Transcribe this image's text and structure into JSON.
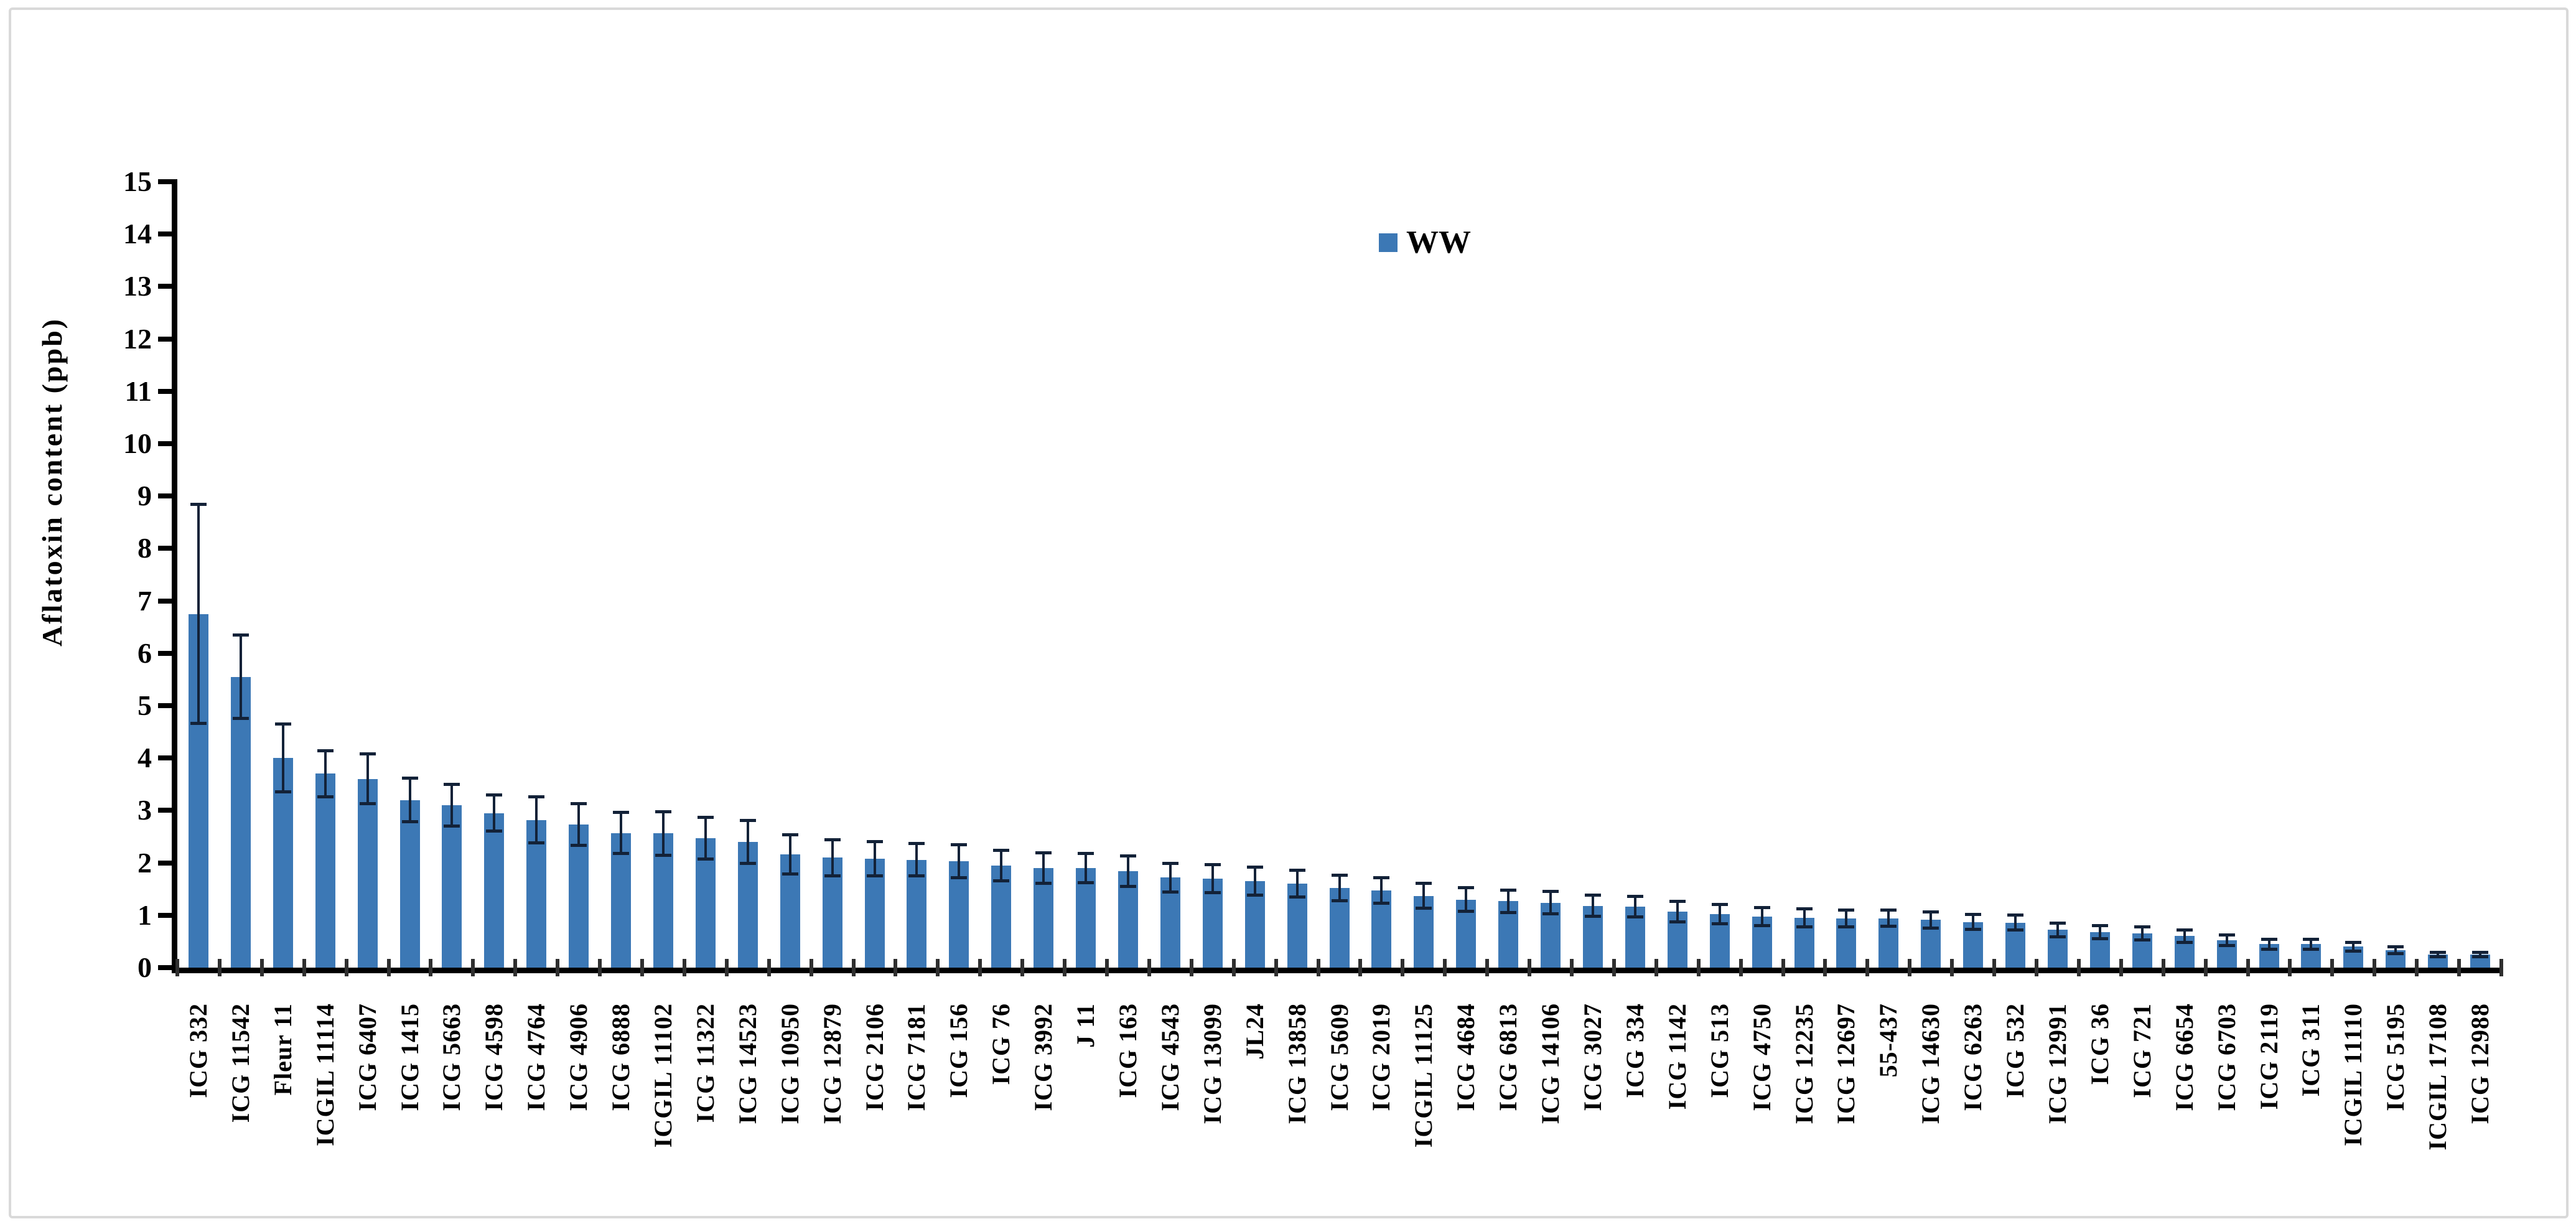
{
  "figure": {
    "background": "#ffffff",
    "frame_border_color": "#d9d9d9",
    "axis_color": "#000000",
    "tick_label_color": "#000000"
  },
  "chart_data": {
    "type": "bar",
    "title": "",
    "xlabel": "",
    "ylabel": "Aflatoxin content (ppb)",
    "ylim": [
      0,
      15
    ],
    "yticks": [
      0,
      1,
      2,
      3,
      4,
      5,
      6,
      7,
      8,
      9,
      10,
      11,
      12,
      13,
      14,
      15
    ],
    "grid": false,
    "legend": {
      "label": "WW",
      "position": "top-center",
      "swatch_color": "#3c78b5"
    },
    "bar_color": "#3c78b5",
    "error_bar_color": "#132238",
    "categories": [
      "ICG 332",
      "ICG 11542",
      "Fleur 11",
      "ICGIL 11114",
      "ICG 6407",
      "ICG 1415",
      "ICG 5663",
      "ICG 4598",
      "ICG 4764",
      "ICG 4906",
      "ICG 6888",
      "ICGIL 11102",
      "ICG 11322",
      "ICG 14523",
      "ICG 10950",
      "ICG 12879",
      "ICG 2106",
      "ICG 7181",
      "ICG 156",
      "ICG 76",
      "ICG 3992",
      "J 11",
      "ICG 163",
      "ICG 4543",
      "ICG 13099",
      "JL24",
      "ICG 13858",
      "ICG 5609",
      "ICG 2019",
      "ICGIL 11125",
      "ICG 4684",
      "ICG 6813",
      "ICG 14106",
      "ICG 3027",
      "ICG 334",
      "ICG 1142",
      "ICG 513",
      "ICG 4750",
      "ICG 12235",
      "ICG 12697",
      "55-437",
      "ICG 14630",
      "ICG 6263",
      "ICG 532",
      "ICG 12991",
      "ICG 36",
      "ICG 721",
      "ICG 6654",
      "ICG 6703",
      "ICG 2119",
      "ICG 311",
      "ICGIL 11110",
      "ICG 5195",
      "ICGIL 17108",
      "ICG 12988"
    ],
    "series": [
      {
        "name": "WW",
        "values": [
          6.75,
          5.55,
          4.0,
          3.7,
          3.6,
          3.2,
          3.1,
          2.95,
          2.82,
          2.73,
          2.57,
          2.56,
          2.47,
          2.4,
          2.16,
          2.1,
          2.08,
          2.06,
          2.03,
          1.95,
          1.9,
          1.9,
          1.84,
          1.72,
          1.7,
          1.65,
          1.6,
          1.52,
          1.47,
          1.37,
          1.3,
          1.27,
          1.24,
          1.18,
          1.16,
          1.07,
          1.02,
          0.97,
          0.95,
          0.94,
          0.94,
          0.91,
          0.87,
          0.86,
          0.72,
          0.68,
          0.65,
          0.6,
          0.52,
          0.45,
          0.45,
          0.4,
          0.33,
          0.25,
          0.25
        ],
        "errors": [
          2.1,
          0.8,
          0.65,
          0.45,
          0.48,
          0.42,
          0.4,
          0.35,
          0.45,
          0.4,
          0.4,
          0.42,
          0.4,
          0.42,
          0.38,
          0.35,
          0.33,
          0.32,
          0.32,
          0.3,
          0.3,
          0.29,
          0.3,
          0.28,
          0.27,
          0.27,
          0.26,
          0.25,
          0.25,
          0.24,
          0.23,
          0.22,
          0.22,
          0.21,
          0.2,
          0.2,
          0.19,
          0.18,
          0.18,
          0.17,
          0.16,
          0.16,
          0.15,
          0.15,
          0.14,
          0.13,
          0.13,
          0.12,
          0.11,
          0.1,
          0.1,
          0.09,
          0.07,
          0.05,
          0.05
        ]
      }
    ]
  }
}
